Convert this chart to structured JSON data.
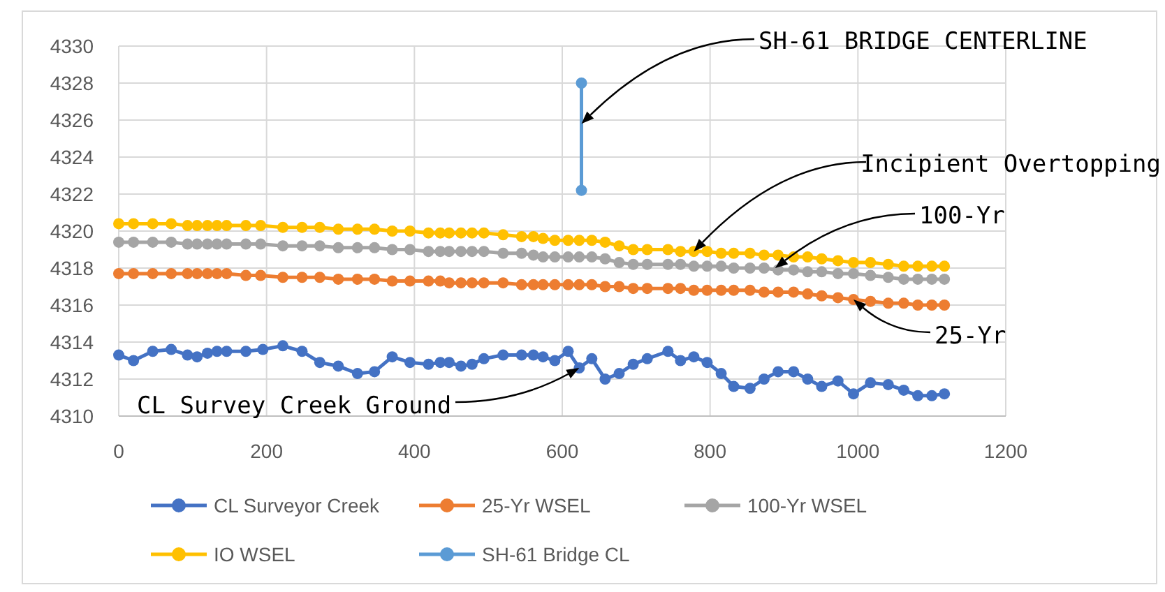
{
  "chart_data": {
    "type": "line",
    "xlim": [
      0,
      1200
    ],
    "xticks": [
      0,
      200,
      400,
      600,
      800,
      1000,
      1200
    ],
    "ylim": [
      4310,
      4330
    ],
    "yticks": [
      4310,
      4312,
      4314,
      4316,
      4318,
      4320,
      4322,
      4324,
      4326,
      4328,
      4330
    ],
    "grid": true,
    "marker": "circle",
    "legend": "bottom",
    "series": [
      {
        "name": "CL Surveyor Creek",
        "color": "#4472c4",
        "x": [
          0,
          20,
          46,
          71,
          93,
          106,
          120,
          133,
          146,
          172,
          195,
          222,
          248,
          272,
          297,
          323,
          346,
          370,
          394,
          419,
          435,
          447,
          463,
          478,
          494,
          520,
          545,
          561,
          574,
          590,
          608,
          623,
          640,
          658,
          677,
          696,
          715,
          743,
          760,
          778,
          796,
          815,
          832,
          854,
          873,
          892,
          913,
          932,
          951,
          973,
          994,
          1017,
          1041,
          1062,
          1081,
          1100,
          1117
        ],
        "values": [
          4313.3,
          4313.0,
          4313.5,
          4313.6,
          4313.3,
          4313.2,
          4313.4,
          4313.5,
          4313.5,
          4313.5,
          4313.6,
          4313.8,
          4313.5,
          4312.9,
          4312.7,
          4312.3,
          4312.4,
          4313.2,
          4312.9,
          4312.8,
          4312.9,
          4312.9,
          4312.7,
          4312.8,
          4313.1,
          4313.3,
          4313.3,
          4313.3,
          4313.2,
          4313.0,
          4313.5,
          4312.6,
          4313.1,
          4312.0,
          4312.3,
          4312.8,
          4313.1,
          4313.5,
          4313.0,
          4313.2,
          4312.9,
          4312.3,
          4311.6,
          4311.5,
          4312.0,
          4312.4,
          4312.4,
          4312.0,
          4311.6,
          4311.9,
          4311.2,
          4311.8,
          4311.7,
          4311.4,
          4311.1,
          4311.1,
          4311.2
        ]
      },
      {
        "name": "25-Yr WSEL",
        "color": "#ed7d31",
        "x": [
          0,
          20,
          46,
          71,
          93,
          106,
          120,
          133,
          146,
          172,
          192,
          222,
          248,
          272,
          297,
          323,
          346,
          370,
          394,
          419,
          435,
          447,
          463,
          478,
          494,
          520,
          545,
          561,
          574,
          590,
          608,
          623,
          640,
          658,
          677,
          696,
          715,
          743,
          760,
          778,
          796,
          815,
          832,
          854,
          873,
          892,
          913,
          932,
          951,
          973,
          994,
          1017,
          1041,
          1062,
          1081,
          1100,
          1117
        ],
        "values": [
          4317.7,
          4317.7,
          4317.7,
          4317.7,
          4317.7,
          4317.7,
          4317.7,
          4317.7,
          4317.7,
          4317.6,
          4317.6,
          4317.5,
          4317.5,
          4317.5,
          4317.4,
          4317.4,
          4317.4,
          4317.3,
          4317.3,
          4317.3,
          4317.3,
          4317.2,
          4317.2,
          4317.2,
          4317.2,
          4317.2,
          4317.1,
          4317.1,
          4317.1,
          4317.1,
          4317.1,
          4317.1,
          4317.1,
          4317.0,
          4317.0,
          4316.9,
          4316.9,
          4316.9,
          4316.9,
          4316.8,
          4316.8,
          4316.8,
          4316.8,
          4316.8,
          4316.7,
          4316.7,
          4316.7,
          4316.6,
          4316.5,
          4316.4,
          4316.3,
          4316.2,
          4316.1,
          4316.1,
          4316.0,
          4316.0,
          4316.0
        ]
      },
      {
        "name": "100-Yr WSEL",
        "color": "#a5a5a5",
        "x": [
          0,
          20,
          46,
          71,
          93,
          106,
          120,
          133,
          146,
          172,
          192,
          222,
          248,
          272,
          297,
          323,
          346,
          370,
          394,
          419,
          435,
          447,
          463,
          478,
          494,
          520,
          545,
          561,
          574,
          590,
          608,
          623,
          640,
          658,
          677,
          696,
          715,
          743,
          760,
          778,
          796,
          815,
          832,
          854,
          873,
          892,
          913,
          932,
          951,
          973,
          994,
          1017,
          1041,
          1062,
          1081,
          1100,
          1117
        ],
        "values": [
          4319.4,
          4319.4,
          4319.4,
          4319.4,
          4319.3,
          4319.3,
          4319.3,
          4319.3,
          4319.3,
          4319.3,
          4319.3,
          4319.2,
          4319.2,
          4319.2,
          4319.1,
          4319.1,
          4319.1,
          4319.0,
          4319.0,
          4318.9,
          4318.9,
          4318.9,
          4318.9,
          4318.9,
          4318.9,
          4318.8,
          4318.8,
          4318.7,
          4318.6,
          4318.6,
          4318.6,
          4318.6,
          4318.6,
          4318.5,
          4318.3,
          4318.2,
          4318.2,
          4318.2,
          4318.2,
          4318.1,
          4318.1,
          4318.1,
          4318.0,
          4318.0,
          4318.0,
          4317.9,
          4317.9,
          4317.8,
          4317.8,
          4317.7,
          4317.7,
          4317.6,
          4317.5,
          4317.4,
          4317.4,
          4317.4,
          4317.4
        ]
      },
      {
        "name": "IO WSEL",
        "color": "#ffc000",
        "x": [
          0,
          20,
          46,
          71,
          93,
          106,
          120,
          133,
          146,
          172,
          192,
          222,
          248,
          272,
          297,
          323,
          346,
          370,
          394,
          419,
          435,
          447,
          463,
          478,
          494,
          520,
          545,
          561,
          574,
          590,
          608,
          623,
          640,
          658,
          677,
          696,
          715,
          743,
          760,
          778,
          796,
          815,
          832,
          854,
          873,
          892,
          913,
          932,
          951,
          973,
          994,
          1017,
          1041,
          1062,
          1081,
          1100,
          1117
        ],
        "values": [
          4320.4,
          4320.4,
          4320.4,
          4320.4,
          4320.3,
          4320.3,
          4320.3,
          4320.3,
          4320.3,
          4320.3,
          4320.3,
          4320.2,
          4320.2,
          4320.2,
          4320.1,
          4320.1,
          4320.1,
          4320.0,
          4320.0,
          4319.9,
          4319.9,
          4319.9,
          4319.9,
          4319.9,
          4319.9,
          4319.8,
          4319.7,
          4319.7,
          4319.6,
          4319.5,
          4319.5,
          4319.5,
          4319.5,
          4319.4,
          4319.2,
          4319.0,
          4319.0,
          4319.0,
          4318.9,
          4318.9,
          4318.9,
          4318.8,
          4318.8,
          4318.8,
          4318.7,
          4318.7,
          4318.6,
          4318.6,
          4318.5,
          4318.4,
          4318.3,
          4318.3,
          4318.2,
          4318.1,
          4318.1,
          4318.1,
          4318.1
        ]
      },
      {
        "name": "SH-61 Bridge CL",
        "color": "#5b9bd5",
        "x": [
          626,
          626
        ],
        "values": [
          4322.2,
          4328
        ]
      }
    ],
    "annotations": [
      {
        "text": "SH-61 BRIDGE CENTERLINE",
        "x": 626,
        "y": 4325.8
      },
      {
        "text": "Incipient Overtopping",
        "x": 778,
        "y": 4318.9
      },
      {
        "text": "100-Yr",
        "x": 888,
        "y": 4318
      },
      {
        "text": "25-Yr",
        "x": 994,
        "y": 4316.3
      },
      {
        "text": "CL Survey Creek Ground",
        "x": 623,
        "y": 4312.6
      }
    ]
  }
}
